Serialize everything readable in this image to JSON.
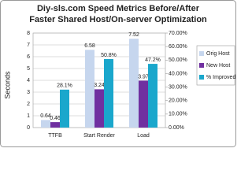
{
  "chart_data": {
    "type": "bar",
    "title_lines": [
      "Diy-sls.com Speed Metrics Before/After",
      "Faster Shared Host/On-server Optimization"
    ],
    "y_label": "Seconds",
    "categories": [
      "TTFB",
      "Start Render",
      "Load"
    ],
    "series": [
      {
        "name": "Orig Host",
        "color": "#c6d6ee",
        "values": [
          0.64,
          6.58,
          7.52
        ]
      },
      {
        "name": "New Host",
        "color": "#7030a0",
        "values": [
          0.46,
          3.24,
          3.97
        ]
      },
      {
        "name": "% Improved",
        "color": "#1aa7cc",
        "axis": "y2",
        "values": [
          28.1,
          50.8,
          47.2
        ],
        "value_labels": [
          "28.1%",
          "50.8%",
          "47.2%"
        ]
      }
    ],
    "ylim": [
      0,
      8
    ],
    "yticks": [
      0,
      1,
      2,
      3,
      4,
      5,
      6,
      7,
      8
    ],
    "y2lim": [
      0,
      70
    ],
    "y2ticks": [
      {
        "value": 0,
        "label": "0.00%"
      },
      {
        "value": 10,
        "label": "10.00%"
      },
      {
        "value": 20,
        "label": "20.00%"
      },
      {
        "value": 30,
        "label": "30.00%"
      },
      {
        "value": 40,
        "label": "40.00%"
      },
      {
        "value": 50,
        "label": "50.00%"
      },
      {
        "value": 60,
        "label": "60.00%"
      },
      {
        "value": 70,
        "label": "70.00%"
      }
    ],
    "grid": true,
    "legend": "right"
  }
}
